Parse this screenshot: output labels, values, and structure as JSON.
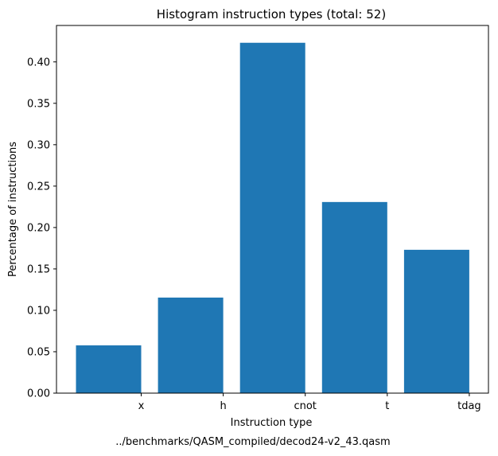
{
  "chart_data": {
    "type": "bar",
    "title": "Histogram instruction types (total: 52)",
    "xlabel": "Instruction type",
    "ylabel": "Percentage of instructions",
    "caption": "../benchmarks/QASM_compiled/decod24-v2_43.qasm",
    "categories": [
      "x",
      "h",
      "cnot",
      "t",
      "tdag"
    ],
    "values": [
      0.0577,
      0.1154,
      0.4231,
      0.2308,
      0.1731
    ],
    "yticks": [
      "0.00",
      "0.05",
      "0.10",
      "0.15",
      "0.20",
      "0.25",
      "0.30",
      "0.35",
      "0.40"
    ],
    "ylim": [
      0,
      0.444
    ],
    "grid": false,
    "bar_color": "#1f77b4"
  }
}
